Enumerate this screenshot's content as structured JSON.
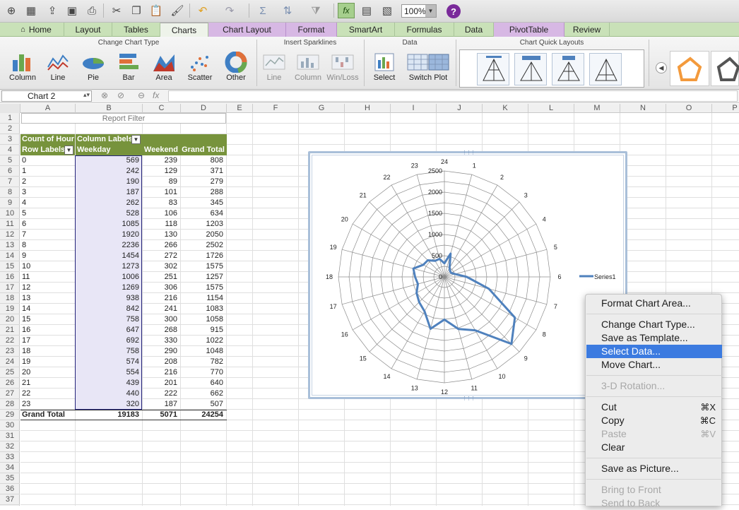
{
  "toolbar": {
    "zoom": "100%",
    "icons": [
      "new-icon",
      "gallery-icon",
      "open-icon",
      "save-icon",
      "print-icon",
      "cut-icon",
      "copy-icon",
      "paste-icon",
      "format-painter-icon",
      "undo-icon",
      "redo-icon",
      "autosum-icon",
      "sort-icon",
      "filter-icon",
      "formula-builder-icon",
      "toolbox-icon",
      "media-browser-icon",
      "help-icon"
    ]
  },
  "tabs": [
    "Home",
    "Layout",
    "Tables",
    "Charts",
    "Chart Layout",
    "Format",
    "SmartArt",
    "Formulas",
    "Data",
    "PivotTable",
    "Review"
  ],
  "ribbon": {
    "groups": {
      "change_chart_type": "Change Chart Type",
      "insert_sparklines": "Insert Sparklines",
      "data": "Data",
      "chart_quick_layouts": "Chart Quick Layouts"
    },
    "chart_types": [
      "Column",
      "Line",
      "Pie",
      "Bar",
      "Area",
      "Scatter",
      "Other"
    ],
    "sparklines": [
      "Line",
      "Column",
      "Win/Loss"
    ],
    "data_buttons": [
      "Select",
      "Switch Plot"
    ]
  },
  "namebox": "Chart 2",
  "columns": [
    "A",
    "B",
    "C",
    "D",
    "E",
    "F",
    "G",
    "H",
    "I",
    "J",
    "K",
    "L",
    "M",
    "N",
    "O",
    "P"
  ],
  "rows": [
    "1",
    "2",
    "3",
    "4",
    "5",
    "6",
    "7",
    "8",
    "9",
    "10",
    "11",
    "12",
    "13",
    "14",
    "15",
    "16",
    "17",
    "18",
    "19",
    "20",
    "21",
    "22",
    "23",
    "24",
    "25",
    "26",
    "27",
    "28",
    "29",
    "30",
    "31",
    "32",
    "33",
    "34",
    "35",
    "36",
    "37"
  ],
  "pivot": {
    "report_filter": "Report Filter",
    "count_label": "Count of Hour",
    "column_labels": "Column Labels",
    "row_labels": "Row Labels",
    "headers": [
      "Weekday",
      "Weekend",
      "Grand Total"
    ],
    "rows": [
      {
        "label": "0",
        "weekday": "569",
        "weekend": "239",
        "total": "808"
      },
      {
        "label": "1",
        "weekday": "242",
        "weekend": "129",
        "total": "371"
      },
      {
        "label": "2",
        "weekday": "190",
        "weekend": "89",
        "total": "279"
      },
      {
        "label": "3",
        "weekday": "187",
        "weekend": "101",
        "total": "288"
      },
      {
        "label": "4",
        "weekday": "262",
        "weekend": "83",
        "total": "345"
      },
      {
        "label": "5",
        "weekday": "528",
        "weekend": "106",
        "total": "634"
      },
      {
        "label": "6",
        "weekday": "1085",
        "weekend": "118",
        "total": "1203"
      },
      {
        "label": "7",
        "weekday": "1920",
        "weekend": "130",
        "total": "2050"
      },
      {
        "label": "8",
        "weekday": "2236",
        "weekend": "266",
        "total": "2502"
      },
      {
        "label": "9",
        "weekday": "1454",
        "weekend": "272",
        "total": "1726"
      },
      {
        "label": "10",
        "weekday": "1273",
        "weekend": "302",
        "total": "1575"
      },
      {
        "label": "11",
        "weekday": "1006",
        "weekend": "251",
        "total": "1257"
      },
      {
        "label": "12",
        "weekday": "1269",
        "weekend": "306",
        "total": "1575"
      },
      {
        "label": "13",
        "weekday": "938",
        "weekend": "216",
        "total": "1154"
      },
      {
        "label": "14",
        "weekday": "842",
        "weekend": "241",
        "total": "1083"
      },
      {
        "label": "15",
        "weekday": "758",
        "weekend": "300",
        "total": "1058"
      },
      {
        "label": "16",
        "weekday": "647",
        "weekend": "268",
        "total": "915"
      },
      {
        "label": "17",
        "weekday": "692",
        "weekend": "330",
        "total": "1022"
      },
      {
        "label": "18",
        "weekday": "758",
        "weekend": "290",
        "total": "1048"
      },
      {
        "label": "19",
        "weekday": "574",
        "weekend": "208",
        "total": "782"
      },
      {
        "label": "20",
        "weekday": "554",
        "weekend": "216",
        "total": "770"
      },
      {
        "label": "21",
        "weekday": "439",
        "weekend": "201",
        "total": "640"
      },
      {
        "label": "22",
        "weekday": "440",
        "weekend": "222",
        "total": "662"
      },
      {
        "label": "23",
        "weekday": "320",
        "weekend": "187",
        "total": "507"
      }
    ],
    "grand_total": {
      "label": "Grand Total",
      "weekday": "19183",
      "weekend": "5071",
      "total": "24254"
    }
  },
  "chart_data": {
    "type": "radar",
    "categories": [
      "1",
      "2",
      "3",
      "4",
      "5",
      "6",
      "7",
      "8",
      "9",
      "10",
      "11",
      "12",
      "13",
      "14",
      "15",
      "16",
      "17",
      "18",
      "19",
      "20",
      "21",
      "22",
      "23",
      "24"
    ],
    "series": [
      {
        "name": "Series1",
        "values": [
          569,
          242,
          190,
          187,
          262,
          528,
          1085,
          1920,
          2236,
          1454,
          1273,
          1006,
          1269,
          938,
          842,
          758,
          647,
          692,
          758,
          574,
          554,
          439,
          440,
          320
        ],
        "color": "#4f81bd"
      }
    ],
    "axis_ticks": [
      "0",
      "500",
      "1000",
      "1500",
      "2000",
      "2500"
    ],
    "rmax": 2500,
    "grid": true,
    "legend_position": "right"
  },
  "context_menu": {
    "items": [
      {
        "label": "Format Chart Area...",
        "shortcut": "",
        "disabled": false,
        "highlight": false
      },
      {
        "sep": true
      },
      {
        "label": "Change Chart Type...",
        "shortcut": "",
        "disabled": false,
        "highlight": false
      },
      {
        "label": "Save as Template...",
        "shortcut": "",
        "disabled": false,
        "highlight": false
      },
      {
        "label": "Select Data...",
        "shortcut": "",
        "disabled": false,
        "highlight": true
      },
      {
        "label": "Move Chart...",
        "shortcut": "",
        "disabled": false,
        "highlight": false
      },
      {
        "sep": true
      },
      {
        "label": "3-D Rotation...",
        "shortcut": "",
        "disabled": true,
        "highlight": false
      },
      {
        "sep": true
      },
      {
        "label": "Cut",
        "shortcut": "⌘X",
        "disabled": false,
        "highlight": false
      },
      {
        "label": "Copy",
        "shortcut": "⌘C",
        "disabled": false,
        "highlight": false
      },
      {
        "label": "Paste",
        "shortcut": "⌘V",
        "disabled": true,
        "highlight": false
      },
      {
        "label": "Clear",
        "shortcut": "",
        "disabled": false,
        "highlight": false
      },
      {
        "sep": true
      },
      {
        "label": "Save as Picture...",
        "shortcut": "",
        "disabled": false,
        "highlight": false
      },
      {
        "sep": true
      },
      {
        "label": "Bring to Front",
        "shortcut": "",
        "disabled": true,
        "highlight": false
      },
      {
        "label": "Send to Back",
        "shortcut": "",
        "disabled": true,
        "highlight": false
      }
    ]
  }
}
